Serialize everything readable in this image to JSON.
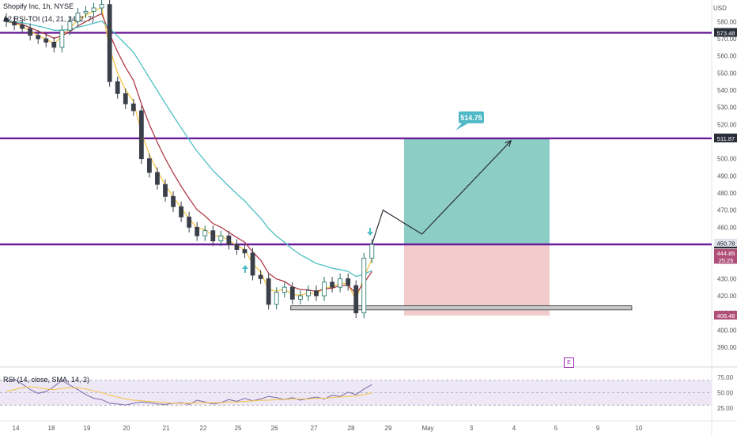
{
  "header": {
    "symbol_line": "Shopify Inc, 1h, NYSE",
    "indicator_line": "A2 RSI-TOI (14, 21, 34, 2, 7)",
    "rsi_label": "RSI (14, close, SMA, 14, 2)",
    "currency": "USD",
    "event_badge": "E"
  },
  "colors": {
    "level_line": "#6a1b9a",
    "up_candle": "#26a69a",
    "down_candle": "#ef5350",
    "ema_fast": "#f5c542",
    "ema_mid": "#b03a48",
    "ema_slow": "#4ec0c3",
    "profit_zone": "#7fc8bf",
    "loss_zone": "#f1c5c8",
    "target_label_bg": "#4fb8c6",
    "rsi_line": "#7b6aa8",
    "rsi_sma": "#f5c542",
    "rsi_band": "#ede7f6"
  },
  "chart_data": [
    {
      "type": "line",
      "title": "Shopify Inc, 1h, NYSE",
      "y_axis_ticks": [
        "580.00",
        "570.00",
        "560.00",
        "550.00",
        "540.00",
        "530.00",
        "520.00",
        "500.00",
        "490.00",
        "480.00",
        "470.00",
        "460.00",
        "440.00",
        "430.00",
        "420.00",
        "410.00",
        "400.00",
        "390.00"
      ],
      "x_axis_ticks": [
        "14",
        "18",
        "19",
        "20",
        "21",
        "22",
        "25",
        "26",
        "27",
        "28",
        "29",
        "May",
        "3",
        "4",
        "5",
        "9",
        "10"
      ],
      "ylim": [
        384,
        588
      ],
      "price_series": {
        "x": [
          0,
          1,
          2,
          3,
          4,
          5,
          6,
          7,
          8,
          9,
          10,
          11,
          12,
          13,
          14,
          15,
          16,
          17,
          18,
          19,
          20,
          21,
          22,
          23,
          24,
          25,
          26,
          27,
          28,
          29,
          30,
          31,
          32,
          33,
          34,
          35,
          36,
          37,
          38,
          39,
          40,
          41,
          42,
          43,
          44,
          45,
          46
        ],
        "close": [
          580,
          578,
          576,
          572,
          570,
          568,
          565,
          575,
          580,
          585,
          586,
          588,
          590,
          545,
          538,
          532,
          528,
          500,
          492,
          485,
          478,
          472,
          466,
          460,
          455,
          458,
          452,
          455,
          450,
          447,
          445,
          432,
          430,
          415,
          422,
          425,
          418,
          420,
          423,
          420,
          428,
          425,
          430,
          426,
          410,
          442,
          450
        ]
      },
      "levels": [
        {
          "label": "573.48",
          "value": 573.48
        },
        {
          "label": "511.89",
          "value": 511.89
        },
        {
          "label": "511.87",
          "value": 511.87
        },
        {
          "label": "450.00",
          "value": 450.0
        },
        {
          "label": "408.48",
          "value": 408.48
        }
      ],
      "price_labels": [
        {
          "label": "450.78",
          "value": 450.78
        },
        {
          "label": "444.85",
          "value": 444.85
        },
        {
          "label": "25:25",
          "value": 440.8
        }
      ],
      "position": {
        "entry": 450.0,
        "target": 511.89,
        "stop": 408.48,
        "target_label": "514.75"
      },
      "projection": [
        {
          "x": 46,
          "y": 450
        },
        {
          "x": 47.4,
          "y": 470
        },
        {
          "x": 52.3,
          "y": 456
        },
        {
          "x": 63.5,
          "y": 510.5
        }
      ],
      "support_box": {
        "x_start": 33,
        "x_end": 58,
        "y_low": 411.8,
        "y_high": 414.2
      },
      "annotations": [
        "up-arrow",
        "down-arrow"
      ]
    },
    {
      "type": "line",
      "title": "RSI (14, close, SMA, 14, 2)",
      "y_axis_ticks": [
        "75.00",
        "50.00",
        "25.00"
      ],
      "ylim": [
        15,
        80
      ],
      "rsi": [
        68,
        72,
        64,
        55,
        49,
        52,
        60,
        70,
        62,
        55,
        47,
        41,
        39,
        33,
        32,
        30,
        33,
        35,
        34,
        32,
        31,
        33,
        34,
        31,
        38,
        35,
        32,
        34,
        39,
        36,
        41,
        37,
        40,
        44,
        42,
        39,
        42,
        38,
        41,
        43,
        40,
        46,
        44,
        51,
        47,
        56,
        63
      ],
      "rsi_sma": [
        52,
        55,
        58,
        60,
        58,
        56,
        55,
        57,
        58,
        58,
        56,
        53,
        50,
        46,
        43,
        40,
        38,
        37,
        36,
        35,
        34,
        33,
        33,
        33,
        34,
        34,
        34,
        34,
        35,
        35,
        36,
        37,
        38,
        38,
        39,
        39,
        40,
        40,
        40,
        41,
        41,
        42,
        43,
        44,
        45,
        47,
        50
      ]
    }
  ]
}
